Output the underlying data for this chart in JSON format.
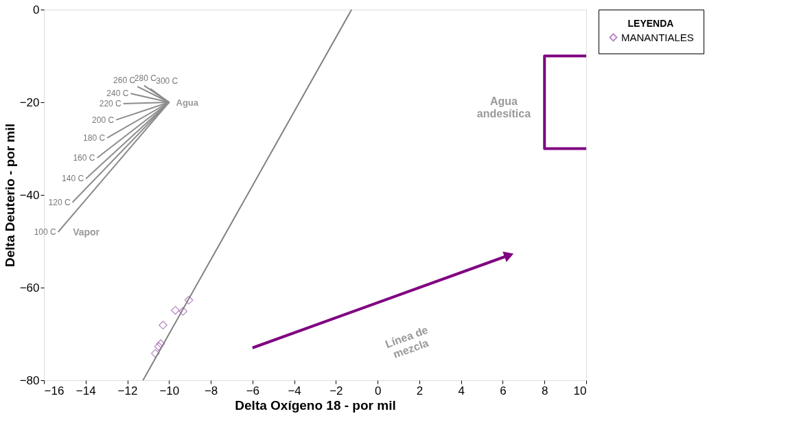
{
  "chart_data": {
    "type": "scatter",
    "xlabel": "Delta Oxígeno 18 - por mil",
    "ylabel": "Delta Deuterio - por mil",
    "legend_title": "LEYENDA",
    "legend": "right",
    "xlim": [
      -16,
      10
    ],
    "xticks": [
      -16,
      -14,
      -12,
      -10,
      -8,
      -6,
      -4,
      -2,
      0,
      2,
      4,
      6,
      8,
      10
    ],
    "ylim": [
      -80,
      0
    ],
    "yticks": [
      -80,
      -60,
      -40,
      -20,
      0
    ],
    "grid": false,
    "series": [
      {
        "name": "MANANTIALES",
        "marker": "diamond",
        "color": "#a05cb0",
        "x": [
          -9.05,
          -9.33,
          -9.7,
          -10.29,
          -10.4,
          -10.5,
          -10.66
        ],
        "values": [
          -62.7,
          -65.1,
          -64.9,
          -68.1,
          -72.1,
          -72.7,
          -74.2
        ]
      },
      {
        "type": "line",
        "color": "#808080",
        "x": [
          -11.25,
          -1.25
        ],
        "values": [
          -80,
          0
        ]
      },
      {
        "name": "300 C",
        "type": "line",
        "color": "#8c8c8c",
        "x": [
          -10.89,
          -10
        ],
        "values": [
          -17.1,
          -20
        ]
      },
      {
        "name": "280 C",
        "type": "line",
        "color": "#8c8c8c",
        "x": [
          -11.2,
          -10
        ],
        "values": [
          -16.4,
          -20
        ]
      },
      {
        "name": "260 C",
        "type": "line",
        "color": "#8c8c8c",
        "x": [
          -11.52,
          -10
        ],
        "values": [
          -16.6,
          -20
        ]
      },
      {
        "name": "240 C",
        "type": "line",
        "color": "#8c8c8c",
        "x": [
          -11.84,
          -10
        ],
        "values": [
          -18.1,
          -20
        ]
      },
      {
        "name": "220 C",
        "type": "line",
        "color": "#8c8c8c",
        "x": [
          -12.19,
          -10
        ],
        "values": [
          -20.3,
          -20
        ]
      },
      {
        "name": "200 C",
        "type": "line",
        "color": "#8c8c8c",
        "x": [
          -12.54,
          -10
        ],
        "values": [
          -23.8,
          -20
        ]
      },
      {
        "name": "180 C",
        "type": "line",
        "color": "#8c8c8c",
        "x": [
          -12.97,
          -10
        ],
        "values": [
          -27.7,
          -20
        ]
      },
      {
        "name": "160 C",
        "type": "line",
        "color": "#8c8c8c",
        "x": [
          -13.45,
          -10
        ],
        "values": [
          -32.0,
          -20
        ]
      },
      {
        "name": "140 C",
        "type": "line",
        "color": "#8c8c8c",
        "x": [
          -13.99,
          -10
        ],
        "values": [
          -36.5,
          -20
        ]
      },
      {
        "name": "120 C",
        "type": "line",
        "color": "#8c8c8c",
        "x": [
          -14.63,
          -10
        ],
        "values": [
          -41.6,
          -20
        ]
      },
      {
        "name": "100 C",
        "type": "line",
        "color": "#8c8c8c",
        "x": [
          -15.32,
          -10
        ],
        "values": [
          -48.0,
          -20
        ]
      },
      {
        "type": "line",
        "color": "#800080",
        "x": [
          10,
          8,
          8,
          10
        ],
        "values": [
          -10,
          -10,
          -30,
          -30
        ]
      },
      {
        "type": "line",
        "color": "#800080",
        "x": [
          -6,
          6.3
        ],
        "values": [
          -73,
          -53
        ]
      }
    ],
    "annotations": [
      "Agua",
      "Vapor",
      "Agua\nandesítica",
      "Línea de\nmezcla"
    ]
  }
}
